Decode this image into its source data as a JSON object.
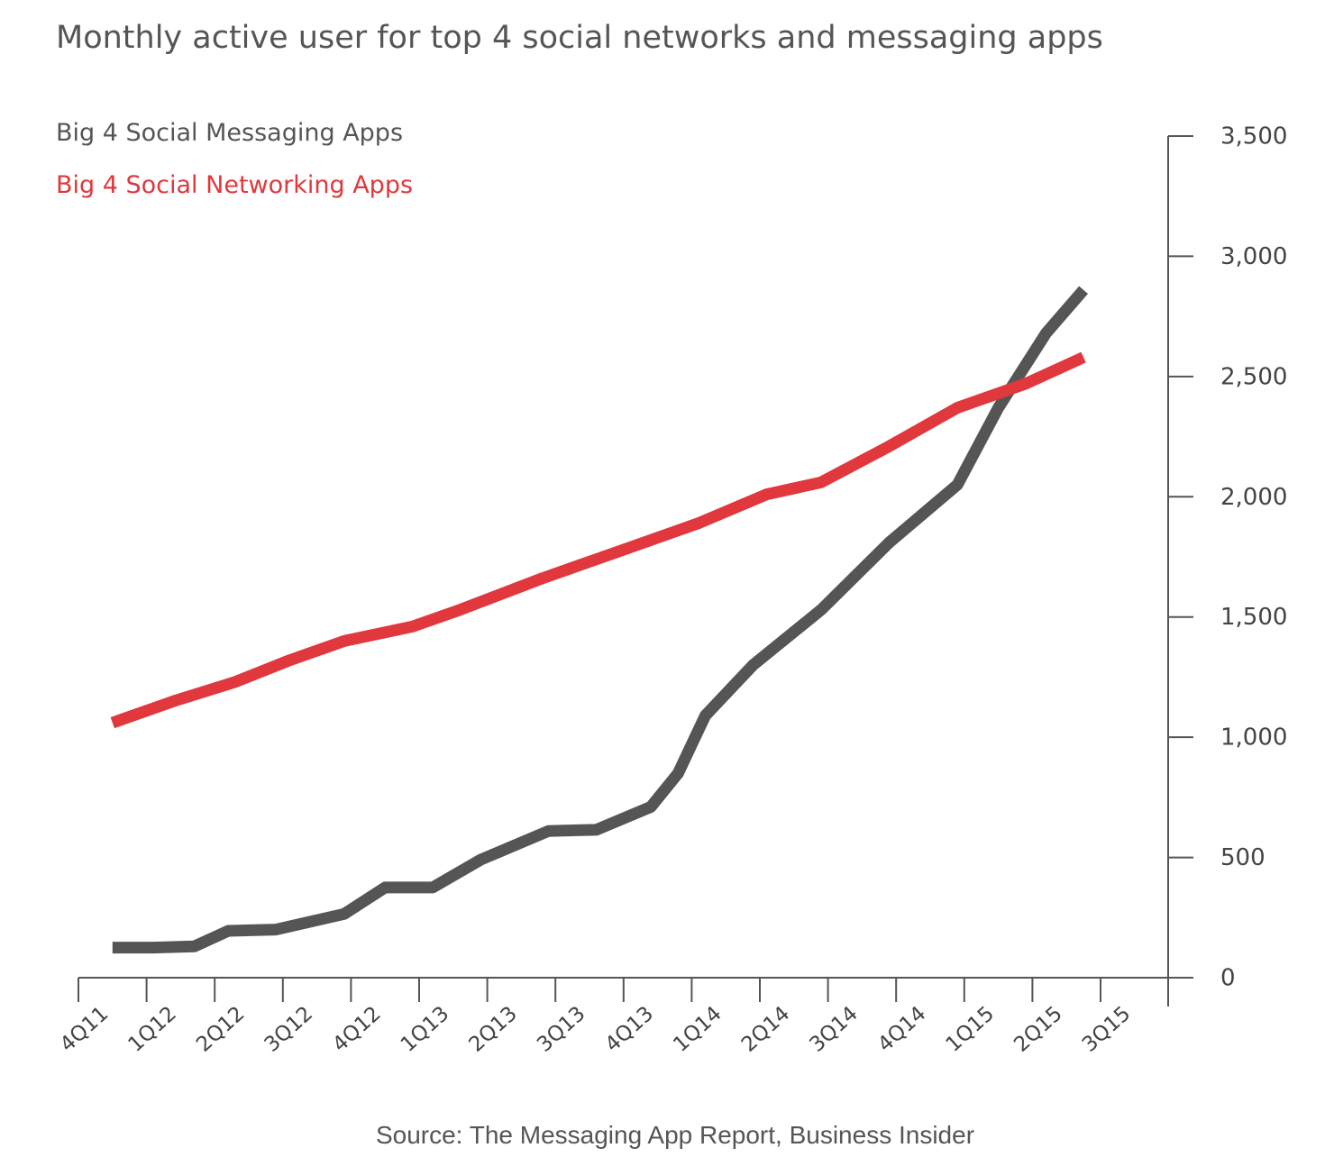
{
  "chart_data": {
    "type": "line",
    "title": "Monthly active user for top 4 social networks and messaging apps",
    "xlabel": "",
    "ylabel": "",
    "categories": [
      "4Q11",
      "1Q12",
      "2Q12",
      "3Q12",
      "4Q12",
      "1Q13",
      "2Q13",
      "3Q13",
      "4Q13",
      "1Q14",
      "2Q14",
      "3Q14",
      "4Q14",
      "1Q15",
      "2Q15",
      "3Q15"
    ],
    "ylim": [
      0,
      3500
    ],
    "yticks": [
      0,
      500,
      1000,
      1500,
      2000,
      2500,
      3000,
      3500
    ],
    "ytick_labels": [
      "0",
      "500",
      "1,000",
      "1,500",
      "2,000",
      "2,500",
      "3,000",
      "3,500"
    ],
    "y_axis_position": "right",
    "grid": false,
    "legend_position": "top-left",
    "series": [
      {
        "name": "Big 4 Social Messaging Apps",
        "color": "#555555",
        "points": [
          [
            0.5,
            125
          ],
          [
            1.1,
            125
          ],
          [
            1.7,
            130
          ],
          [
            2.2,
            195
          ],
          [
            2.9,
            200
          ],
          [
            3.9,
            265
          ],
          [
            4.5,
            375
          ],
          [
            5.2,
            375
          ],
          [
            5.9,
            490
          ],
          [
            6.9,
            610
          ],
          [
            7.6,
            615
          ],
          [
            8.4,
            710
          ],
          [
            8.8,
            850
          ],
          [
            9.2,
            1090
          ],
          [
            9.9,
            1300
          ],
          [
            10.9,
            1530
          ],
          [
            11.9,
            1810
          ],
          [
            12.9,
            2050
          ],
          [
            13.5,
            2370
          ],
          [
            14.2,
            2680
          ],
          [
            14.75,
            2860
          ]
        ]
      },
      {
        "name": "Big 4 Social Networking Apps",
        "color": "#e0383c",
        "points": [
          [
            0.5,
            1060
          ],
          [
            1.4,
            1150
          ],
          [
            2.3,
            1230
          ],
          [
            3.1,
            1320
          ],
          [
            3.9,
            1400
          ],
          [
            4.9,
            1460
          ],
          [
            5.6,
            1530
          ],
          [
            6.8,
            1660
          ],
          [
            7.9,
            1770
          ],
          [
            9.1,
            1890
          ],
          [
            10.1,
            2010
          ],
          [
            10.9,
            2060
          ],
          [
            11.9,
            2210
          ],
          [
            12.9,
            2370
          ],
          [
            13.9,
            2470
          ],
          [
            14.75,
            2580
          ]
        ]
      }
    ]
  },
  "source": "Source: The Messaging App Report, Business Insider"
}
